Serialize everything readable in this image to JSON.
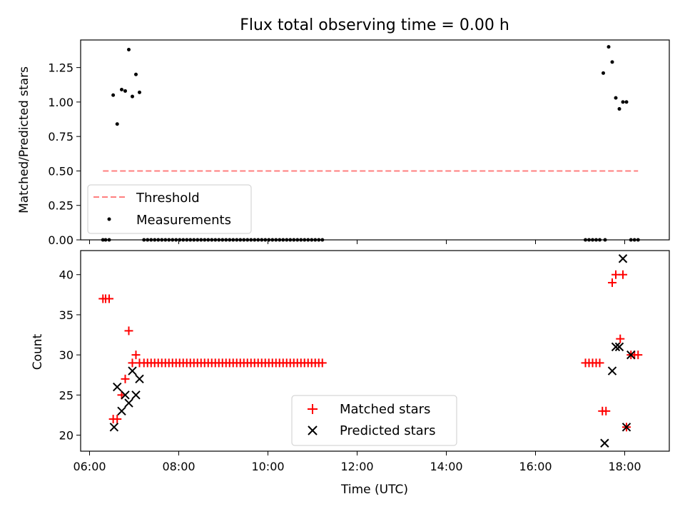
{
  "figure": {
    "title": "Flux total observing time = 0.00 h",
    "xlabel": "Time (UTC)",
    "x_range_hours": [
      5.8,
      19.0
    ],
    "x_ticks": [
      {
        "value": 6,
        "label": "06:00"
      },
      {
        "value": 8,
        "label": "08:00"
      },
      {
        "value": 10,
        "label": "10:00"
      },
      {
        "value": 12,
        "label": "12:00"
      },
      {
        "value": 14,
        "label": "14:00"
      },
      {
        "value": 16,
        "label": "16:00"
      },
      {
        "value": 18,
        "label": "18:00"
      }
    ]
  },
  "chart_data": [
    {
      "type": "scatter",
      "title": "Flux total observing time = 0.00 h",
      "ylabel": "Matched/Predicted stars",
      "ylim": [
        0,
        1.45
      ],
      "y_ticks": [
        "0.00",
        "0.25",
        "0.50",
        "0.75",
        "1.00",
        "1.25"
      ],
      "legend": {
        "position": "lower-left",
        "entries": [
          "Threshold",
          "Measurements"
        ]
      },
      "series": [
        {
          "name": "Threshold",
          "kind": "dashed-line",
          "color": "#ff7f7f",
          "x": [
            6.3,
            18.3
          ],
          "y": [
            0.5,
            0.5
          ]
        },
        {
          "name": "Measurements",
          "kind": "dots",
          "color": "#000000",
          "x": [
            6.3,
            6.36,
            6.44,
            6.53,
            6.62,
            6.72,
            6.8,
            6.88,
            6.96,
            7.04,
            7.12,
            7.22,
            7.3,
            7.38,
            7.46,
            7.54,
            7.62,
            7.7,
            7.78,
            7.86,
            7.94,
            8.02,
            8.1,
            8.18,
            8.26,
            8.34,
            8.42,
            8.5,
            8.58,
            8.66,
            8.74,
            8.82,
            8.9,
            8.98,
            9.06,
            9.14,
            9.22,
            9.3,
            9.38,
            9.46,
            9.54,
            9.62,
            9.7,
            9.78,
            9.86,
            9.94,
            10.02,
            10.1,
            10.18,
            10.26,
            10.34,
            10.42,
            10.5,
            10.58,
            10.66,
            10.74,
            10.82,
            10.9,
            10.98,
            11.06,
            11.14,
            11.22,
            17.12,
            17.2,
            17.28,
            17.36,
            17.44,
            17.52,
            17.56,
            17.64,
            17.72,
            17.8,
            17.88,
            17.96,
            18.04,
            18.14,
            18.22,
            18.3
          ],
          "y": [
            0,
            0,
            0,
            1.05,
            0.84,
            1.09,
            1.08,
            1.38,
            1.04,
            1.2,
            1.07,
            0,
            0,
            0,
            0,
            0,
            0,
            0,
            0,
            0,
            0,
            0,
            0,
            0,
            0,
            0,
            0,
            0,
            0,
            0,
            0,
            0,
            0,
            0,
            0,
            0,
            0,
            0,
            0,
            0,
            0,
            0,
            0,
            0,
            0,
            0,
            0,
            0,
            0,
            0,
            0,
            0,
            0,
            0,
            0,
            0,
            0,
            0,
            0,
            0,
            0,
            0,
            0,
            0,
            0,
            0,
            0,
            1.21,
            0,
            1.4,
            1.29,
            1.03,
            0.95,
            1.0,
            1.0,
            0,
            0,
            0
          ]
        }
      ]
    },
    {
      "type": "scatter",
      "ylabel": "Count",
      "ylim": [
        18,
        43
      ],
      "y_ticks": [
        "20",
        "25",
        "30",
        "35",
        "40"
      ],
      "legend": {
        "position": "lower-center",
        "entries": [
          "Matched stars",
          "Predicted stars"
        ]
      },
      "series": [
        {
          "name": "Matched stars",
          "marker": "plus",
          "color": "#ff0000",
          "x": [
            6.3,
            6.36,
            6.44,
            6.53,
            6.62,
            6.72,
            6.8,
            6.88,
            6.96,
            7.04,
            7.12,
            7.22,
            7.3,
            7.38,
            7.46,
            7.54,
            7.62,
            7.7,
            7.78,
            7.86,
            7.94,
            8.02,
            8.1,
            8.18,
            8.26,
            8.34,
            8.42,
            8.5,
            8.58,
            8.66,
            8.74,
            8.82,
            8.9,
            8.98,
            9.06,
            9.14,
            9.22,
            9.3,
            9.38,
            9.46,
            9.54,
            9.62,
            9.7,
            9.78,
            9.86,
            9.94,
            10.02,
            10.1,
            10.18,
            10.26,
            10.34,
            10.42,
            10.5,
            10.58,
            10.66,
            10.74,
            10.82,
            10.9,
            10.98,
            11.06,
            11.14,
            11.22,
            17.12,
            17.2,
            17.28,
            17.36,
            17.44,
            17.5,
            17.58,
            17.72,
            17.8,
            17.9,
            17.96,
            18.04,
            18.14,
            18.22,
            18.3
          ],
          "y": [
            37,
            37,
            37,
            22,
            22,
            25,
            27,
            33,
            29,
            30,
            29,
            29,
            29,
            29,
            29,
            29,
            29,
            29,
            29,
            29,
            29,
            29,
            29,
            29,
            29,
            29,
            29,
            29,
            29,
            29,
            29,
            29,
            29,
            29,
            29,
            29,
            29,
            29,
            29,
            29,
            29,
            29,
            29,
            29,
            29,
            29,
            29,
            29,
            29,
            29,
            29,
            29,
            29,
            29,
            29,
            29,
            29,
            29,
            29,
            29,
            29,
            29,
            29,
            29,
            29,
            29,
            29,
            23,
            23,
            39,
            40,
            32,
            40,
            21,
            30,
            30,
            30
          ]
        },
        {
          "name": "Predicted stars",
          "marker": "x",
          "color": "#000000",
          "x": [
            6.55,
            6.62,
            6.72,
            6.8,
            6.88,
            6.96,
            7.04,
            7.12,
            17.55,
            17.72,
            17.8,
            17.88,
            17.96,
            18.04,
            18.14
          ],
          "y": [
            21,
            26,
            23,
            25,
            24,
            28,
            25,
            27,
            19,
            28,
            31,
            31,
            42,
            21,
            30
          ]
        }
      ]
    }
  ]
}
